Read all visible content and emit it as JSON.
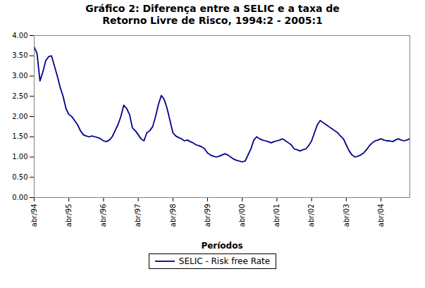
{
  "chart_data": {
    "type": "line",
    "title": "Gráfico 2: Diferença entre a SELIC e a taxa de\nRetorno Livre de Risco, 1994:2 - 2005:1",
    "xlabel": "Períodos",
    "x": [
      0,
      1,
      2,
      3,
      4,
      5,
      6,
      7,
      8,
      9,
      10,
      11,
      12,
      13,
      14,
      15,
      16,
      17,
      18,
      19,
      20,
      21,
      22,
      23,
      24,
      25,
      26,
      27,
      28,
      29,
      30,
      31,
      32,
      33,
      34,
      35,
      36,
      37,
      38,
      39,
      40,
      41,
      42,
      43,
      44,
      45,
      46,
      47,
      48,
      49,
      50,
      51,
      52,
      53,
      54,
      55,
      56,
      57,
      58,
      59,
      60,
      61,
      62,
      63,
      64,
      65,
      66,
      67,
      68,
      69,
      70,
      71,
      72,
      73,
      74,
      75,
      76,
      77,
      78,
      79,
      80,
      81,
      82,
      83,
      84,
      85,
      86,
      87,
      88,
      89,
      90,
      91,
      92,
      93,
      94,
      95,
      96,
      97,
      98,
      99,
      100,
      101,
      102,
      103,
      104,
      105,
      106,
      107,
      108,
      109,
      110,
      111,
      112,
      113,
      114,
      115,
      116,
      117,
      118,
      119,
      120,
      121,
      122,
      123,
      124,
      125,
      126,
      127,
      128,
      129,
      130
    ],
    "series": [
      {
        "name": "SELIC - Risk free Rate",
        "color": "#00008B",
        "values": [
          3.72,
          3.55,
          2.88,
          3.1,
          3.38,
          3.48,
          3.5,
          3.25,
          3.0,
          2.72,
          2.5,
          2.2,
          2.05,
          2.0,
          1.9,
          1.8,
          1.65,
          1.55,
          1.52,
          1.5,
          1.52,
          1.5,
          1.48,
          1.45,
          1.4,
          1.38,
          1.42,
          1.5,
          1.65,
          1.8,
          2.0,
          2.28,
          2.2,
          2.05,
          1.72,
          1.65,
          1.55,
          1.45,
          1.4,
          1.6,
          1.65,
          1.75,
          2.0,
          2.3,
          2.52,
          2.42,
          2.2,
          1.9,
          1.6,
          1.52,
          1.48,
          1.45,
          1.4,
          1.42,
          1.38,
          1.35,
          1.3,
          1.28,
          1.25,
          1.2,
          1.1,
          1.05,
          1.02,
          1.0,
          1.02,
          1.05,
          1.08,
          1.05,
          1.0,
          0.95,
          0.92,
          0.9,
          0.88,
          0.9,
          1.05,
          1.2,
          1.42,
          1.5,
          1.45,
          1.42,
          1.4,
          1.38,
          1.35,
          1.38,
          1.4,
          1.42,
          1.45,
          1.4,
          1.35,
          1.3,
          1.2,
          1.18,
          1.15,
          1.18,
          1.2,
          1.28,
          1.4,
          1.6,
          1.8,
          1.9,
          1.85,
          1.8,
          1.75,
          1.7,
          1.65,
          1.6,
          1.52,
          1.45,
          1.3,
          1.15,
          1.05,
          1.0,
          1.02,
          1.05,
          1.1,
          1.18,
          1.28,
          1.35,
          1.4,
          1.42,
          1.45,
          1.42,
          1.4,
          1.4,
          1.38,
          1.42,
          1.45,
          1.42,
          1.4,
          1.42,
          1.45
        ]
      }
    ],
    "xlim": [
      0,
      130
    ],
    "xticks": [
      {
        "value": 0,
        "label": "abr/94"
      },
      {
        "value": 12,
        "label": "abr/95"
      },
      {
        "value": 24,
        "label": "abr/96"
      },
      {
        "value": 36,
        "label": "abr/97"
      },
      {
        "value": 48,
        "label": "abr/98"
      },
      {
        "value": 60,
        "label": "abr/99"
      },
      {
        "value": 72,
        "label": "abr/00"
      },
      {
        "value": 84,
        "label": "abr/01"
      },
      {
        "value": 96,
        "label": "abr/02"
      },
      {
        "value": 108,
        "label": "abr/03"
      },
      {
        "value": 120,
        "label": "abr/04"
      }
    ],
    "ylim": [
      0.0,
      4.0
    ],
    "yticks": [
      {
        "value": 0.0,
        "label": "0.00"
      },
      {
        "value": 0.5,
        "label": "0.50"
      },
      {
        "value": 1.0,
        "label": "1.00"
      },
      {
        "value": 1.5,
        "label": "1.50"
      },
      {
        "value": 2.0,
        "label": "2.00"
      },
      {
        "value": 2.5,
        "label": "2.50"
      },
      {
        "value": 3.0,
        "label": "3.00"
      },
      {
        "value": 3.5,
        "label": "3.50"
      },
      {
        "value": 4.0,
        "label": "4.00"
      }
    ],
    "grid": false,
    "legend": "bottom"
  }
}
